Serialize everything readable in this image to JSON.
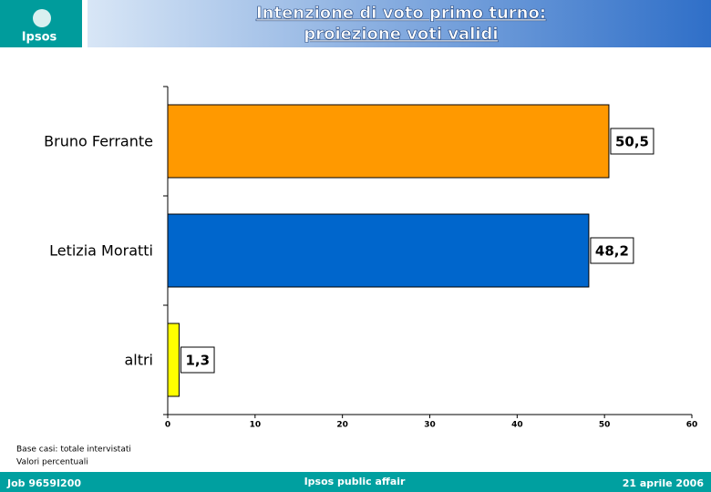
{
  "logo": "Ipsos",
  "chart_data": {
    "type": "bar",
    "title": "Intenzione di voto primo turno:",
    "subtitle": "proiezione voti validi",
    "categories": [
      "Bruno Ferrante",
      "Letizia Moratti",
      "altri"
    ],
    "values": [
      50.5,
      48.2,
      1.3
    ],
    "value_labels": [
      "50,5",
      "48,2",
      "1,3"
    ],
    "colors": [
      "#ff9900",
      "#0066cc",
      "#ffff00"
    ],
    "xlim": [
      0,
      60
    ],
    "xticks": [
      0,
      10,
      20,
      30,
      40,
      50,
      60
    ],
    "grid": false
  },
  "notes": [
    "Base casi: totale intervistati",
    "Valori percentuali"
  ],
  "footer": {
    "left": "Job 9659I200",
    "center": "Ipsos public affair",
    "right": "21 aprile 2006"
  }
}
